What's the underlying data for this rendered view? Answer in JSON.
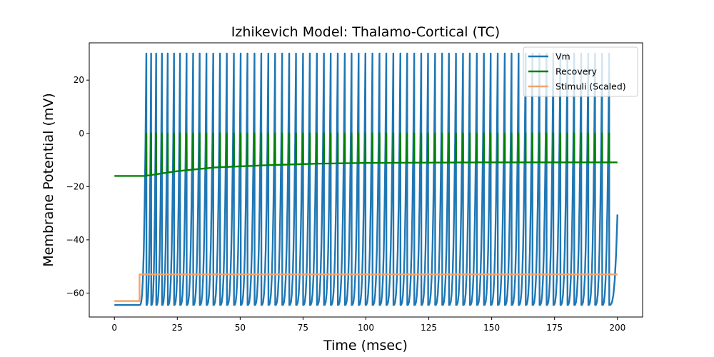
{
  "chart_data": {
    "type": "line",
    "title": "Izhikevich Model: Thalamo-Cortical (TC)",
    "xlabel": "Time (msec)",
    "ylabel": "Membrane Potential (mV)",
    "xlim": [
      -10,
      210
    ],
    "ylim": [
      -69,
      34
    ],
    "xticks": [
      0,
      25,
      50,
      75,
      100,
      125,
      150,
      175,
      200
    ],
    "yticks": [
      -60,
      -40,
      -20,
      0,
      20
    ],
    "grid": false,
    "legend_position": "top-right",
    "stimulus": {
      "onset_ms": 10,
      "pre_level": -63,
      "post_level": -53,
      "end_ms": 200
    },
    "series": [
      {
        "name": "Vm",
        "color": "#1f77b4",
        "baseline_before_stimulus": -64.5,
        "spike_peak": 30,
        "reset_value": -64.5,
        "spike_times": [
          12.7,
          14.6,
          16.6,
          18.9,
          21.2,
          23.7,
          26.1,
          28.7,
          31.3,
          33.9,
          36.6,
          39.3,
          42.0,
          44.7,
          47.5,
          50.2,
          52.9,
          55.7,
          58.4,
          61.2,
          63.9,
          66.7,
          69.5,
          72.2,
          75.0,
          77.7,
          80.5,
          83.3,
          86.0,
          88.8,
          91.6,
          94.3,
          97.1,
          99.8,
          102.6,
          105.4,
          108.1,
          110.9,
          113.7,
          116.4,
          119.2,
          122.0,
          124.7,
          127.5,
          130.3,
          133.0,
          135.8,
          138.6,
          141.3,
          144.1,
          146.9,
          149.6,
          152.4,
          155.2,
          157.9,
          160.7,
          163.5,
          166.2,
          169.0,
          171.8,
          174.5,
          177.3,
          180.1,
          182.8,
          185.6,
          188.4,
          191.1,
          193.9,
          196.7
        ],
        "end_value": -30.5
      },
      {
        "name": "Recovery",
        "color": "#008000",
        "baseline_before_stimulus": -16,
        "spike_peak": 0,
        "trend": [
          [
            0,
            -16
          ],
          [
            12,
            -16
          ],
          [
            25,
            -14.2
          ],
          [
            40,
            -12.8
          ],
          [
            60,
            -12
          ],
          [
            80,
            -11.4
          ],
          [
            100,
            -11.1
          ],
          [
            150,
            -10.9
          ],
          [
            200,
            -10.9
          ]
        ]
      },
      {
        "name": "Stimuli (Scaled)",
        "color": "#f4a46b",
        "points": [
          [
            0,
            -63
          ],
          [
            10,
            -63
          ],
          [
            10,
            -53
          ],
          [
            200,
            -53
          ]
        ]
      }
    ]
  }
}
